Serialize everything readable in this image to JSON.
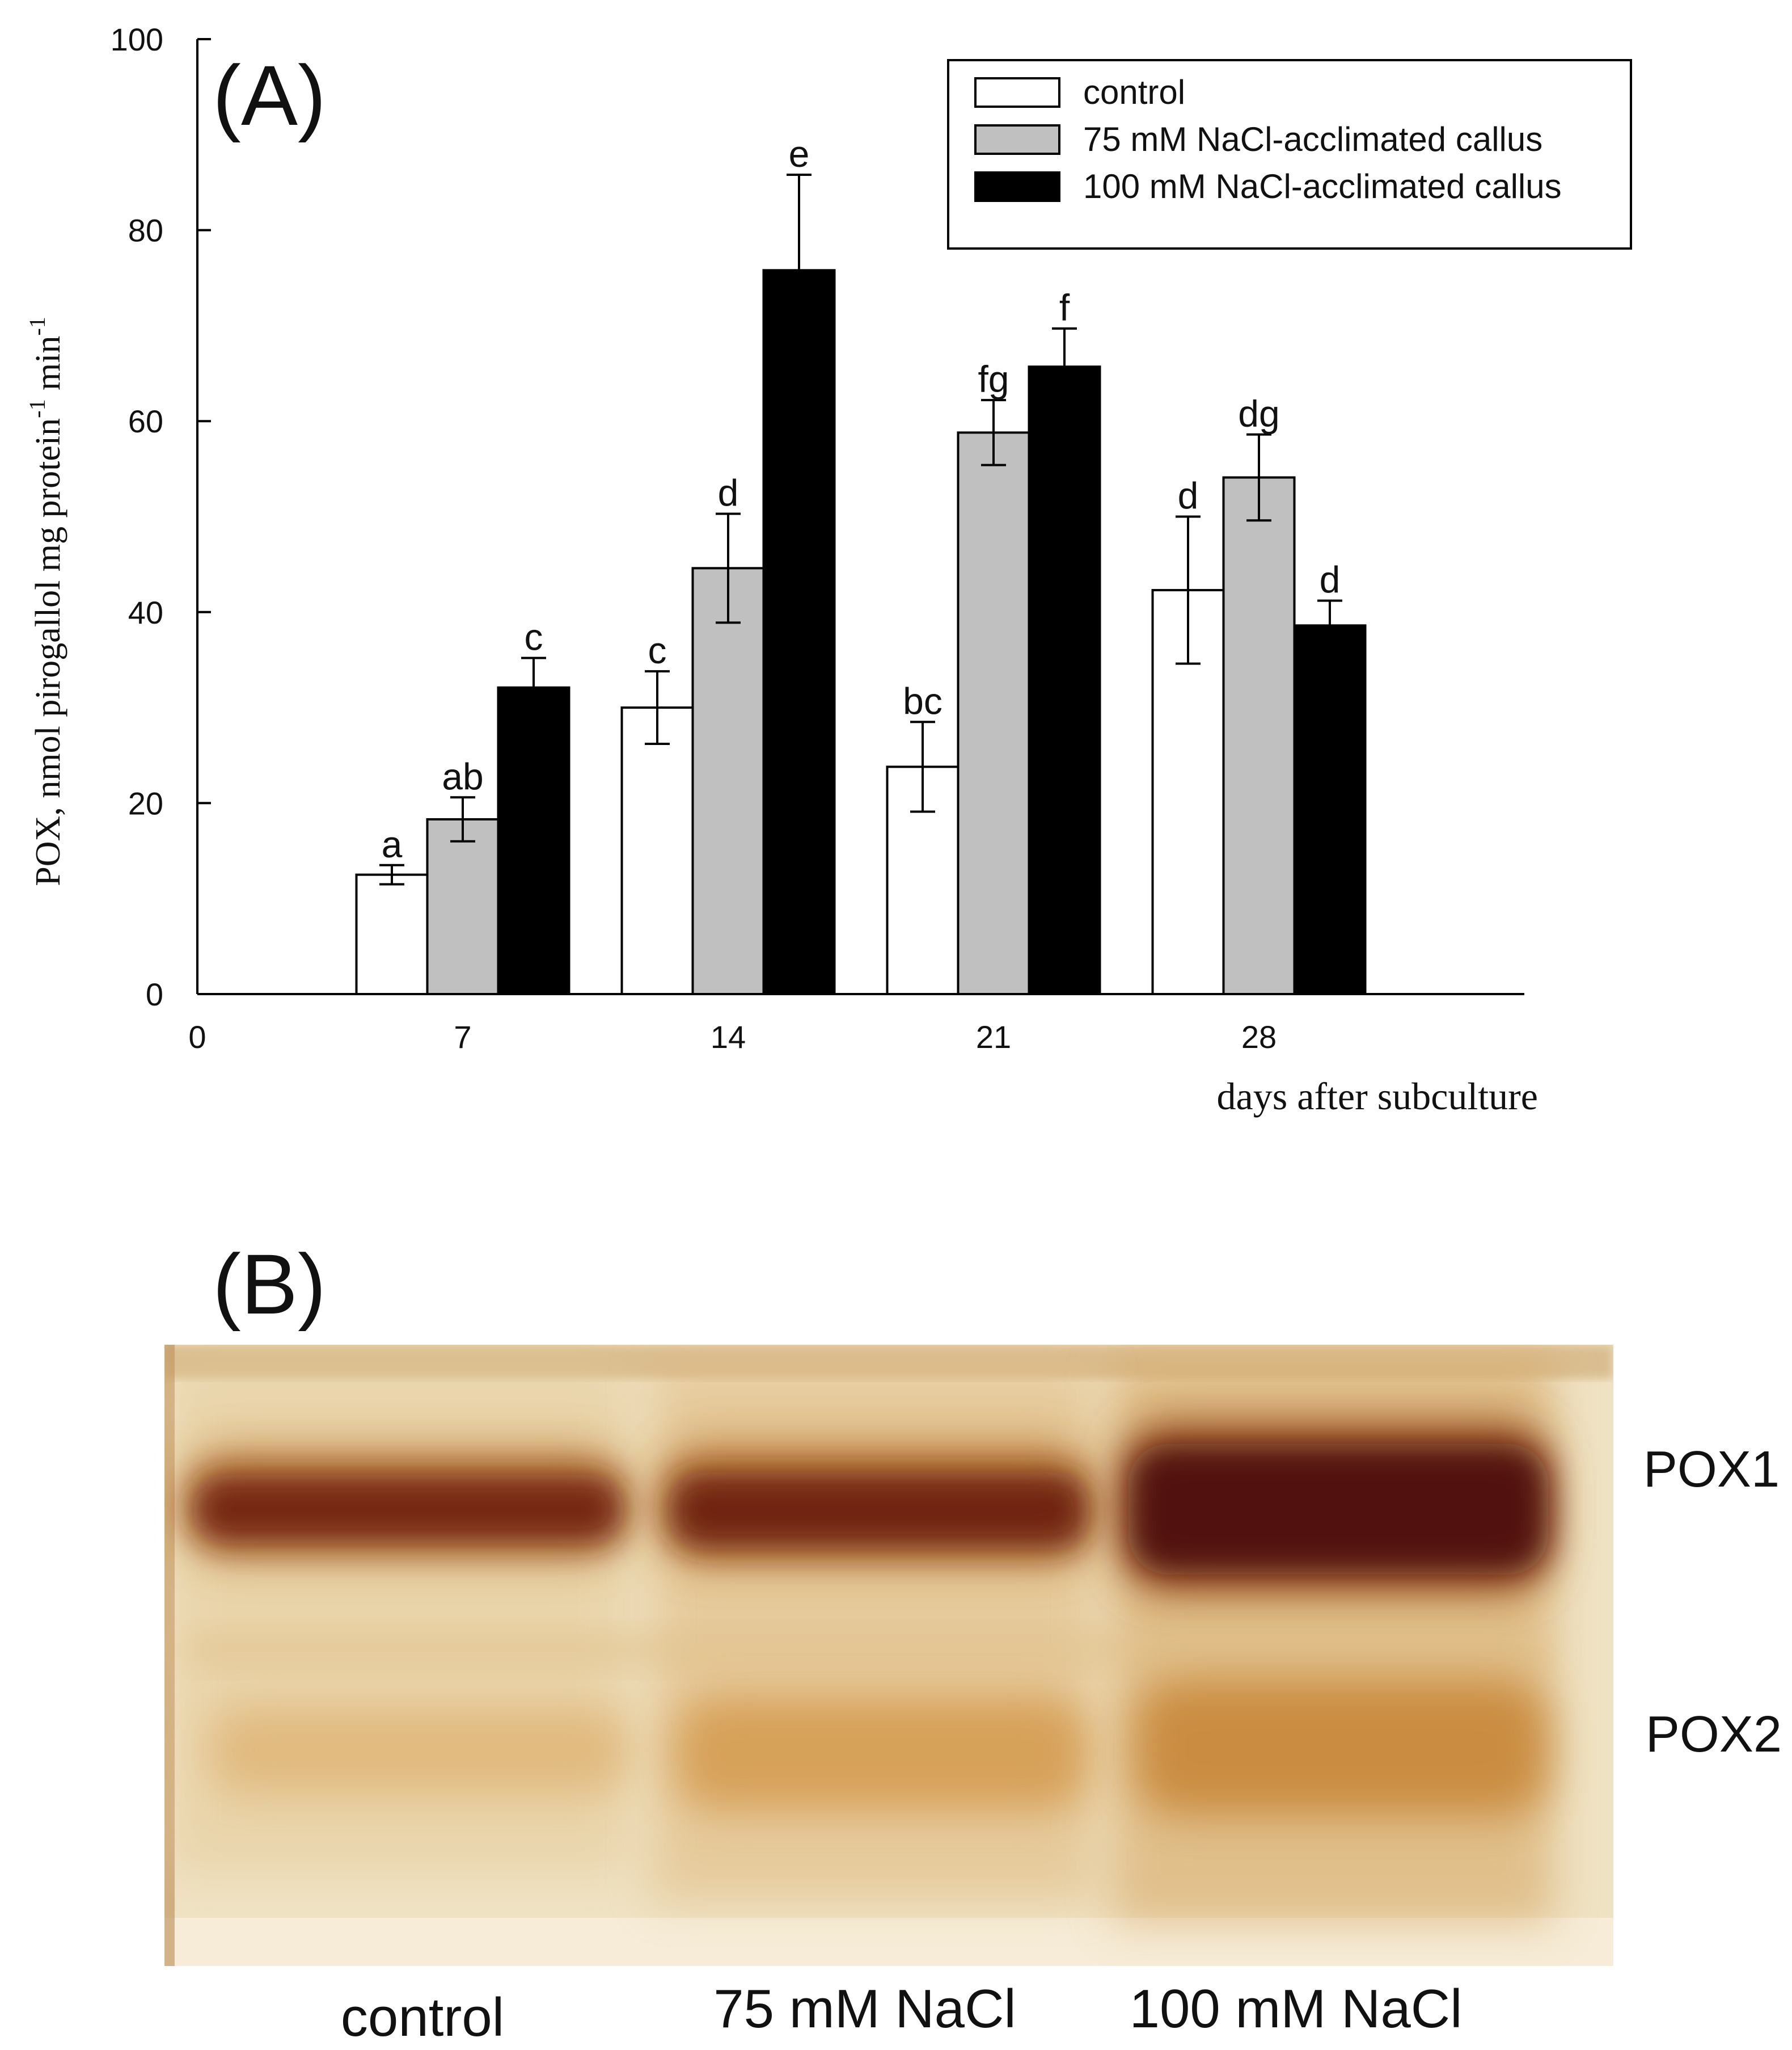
{
  "panel_a": {
    "label": "(A)",
    "chart_data": {
      "type": "bar",
      "title": "",
      "xlabel": "days after subculture",
      "ylabel_prefix": "POX, nmol pirogallol mg protein",
      "ylabel_exp1": "-1",
      "ylabel_mid": " min",
      "ylabel_exp2": "-1",
      "x_ticks": [
        "0",
        "7",
        "14",
        "21",
        "28"
      ],
      "xlim": [
        0,
        35
      ],
      "ylim": [
        0,
        100
      ],
      "y_ticks": [
        "0",
        "20",
        "40",
        "60",
        "80",
        "100"
      ],
      "categories": [
        "7",
        "14",
        "21",
        "28"
      ],
      "series": [
        {
          "name": "control",
          "color": "#ffffff",
          "values": [
            12.5,
            30.0,
            23.8,
            42.3
          ],
          "errors": [
            1.0,
            3.8,
            4.7,
            7.7
          ],
          "letters": [
            "a",
            "c",
            "bc",
            "d"
          ]
        },
        {
          "name": "75 mM NaCl-acclimated callus",
          "color": "#c0c0c0",
          "values": [
            18.3,
            44.6,
            58.8,
            54.1
          ],
          "errors": [
            2.3,
            5.7,
            3.4,
            4.5
          ],
          "letters": [
            "ab",
            "d",
            "fg",
            "dg"
          ]
        },
        {
          "name": "100 mM NaCl-acclimated callus",
          "color": "#000000",
          "values": [
            32.1,
            75.8,
            65.7,
            38.6
          ],
          "errors": [
            3.1,
            10.0,
            4.0,
            2.6
          ],
          "letters": [
            "c",
            "e",
            "f",
            "d"
          ]
        }
      ],
      "legend_position": "top-right",
      "grid": false
    }
  },
  "panel_b": {
    "label": "(B)",
    "bands": [
      "POX1",
      "POX2"
    ],
    "lanes": [
      "control",
      "75 mM NaCl",
      "100 mM NaCl"
    ],
    "band_colors": {
      "gel_bg": "#efe2c3",
      "pox1": "#6e1a0c",
      "pox2": "#c98a3c"
    }
  }
}
